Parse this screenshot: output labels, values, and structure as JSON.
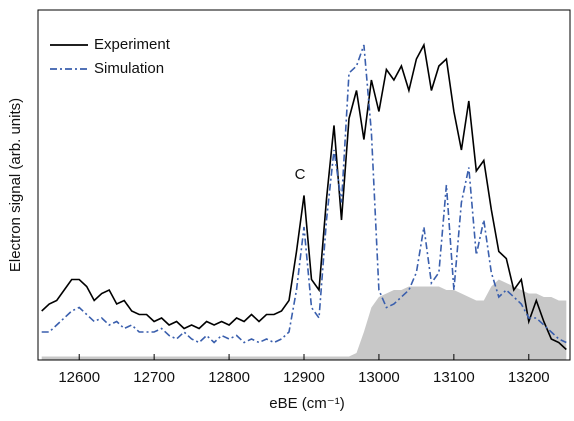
{
  "chart_data": {
    "type": "line",
    "xlabel": "eBE (cm⁻¹)",
    "ylabel": "Electron signal (arb. units)",
    "annotation": "C",
    "x": [
      12550,
      12560,
      12570,
      12580,
      12590,
      12600,
      12610,
      12620,
      12630,
      12640,
      12650,
      12660,
      12670,
      12680,
      12690,
      12700,
      12710,
      12720,
      12730,
      12740,
      12750,
      12760,
      12770,
      12780,
      12790,
      12800,
      12810,
      12820,
      12830,
      12840,
      12850,
      12860,
      12870,
      12880,
      12890,
      12900,
      12910,
      12920,
      12930,
      12940,
      12950,
      12960,
      12970,
      12980,
      12990,
      13000,
      13010,
      13020,
      13030,
      13040,
      13050,
      13060,
      13070,
      13080,
      13090,
      13100,
      13110,
      13120,
      13130,
      13140,
      13150,
      13160,
      13170,
      13180,
      13190,
      13200,
      13210,
      13220,
      13230,
      13240,
      13250
    ],
    "series": [
      {
        "name": "Experiment",
        "color": "#000000",
        "dash": "solid",
        "values": [
          0.14,
          0.16,
          0.17,
          0.2,
          0.23,
          0.23,
          0.21,
          0.17,
          0.19,
          0.2,
          0.16,
          0.17,
          0.14,
          0.13,
          0.13,
          0.11,
          0.12,
          0.1,
          0.11,
          0.09,
          0.1,
          0.09,
          0.11,
          0.1,
          0.11,
          0.1,
          0.12,
          0.11,
          0.13,
          0.11,
          0.13,
          0.13,
          0.14,
          0.17,
          0.31,
          0.47,
          0.23,
          0.2,
          0.46,
          0.67,
          0.4,
          0.69,
          0.77,
          0.63,
          0.8,
          0.71,
          0.83,
          0.8,
          0.84,
          0.77,
          0.86,
          0.9,
          0.77,
          0.84,
          0.86,
          0.71,
          0.6,
          0.74,
          0.54,
          0.57,
          0.43,
          0.31,
          0.29,
          0.2,
          0.23,
          0.11,
          0.17,
          0.11,
          0.06,
          0.05,
          0.03
        ]
      },
      {
        "name": "Simulation",
        "color": "#3a5fad",
        "dash": "dashdot",
        "values": [
          0.08,
          0.08,
          0.1,
          0.12,
          0.14,
          0.15,
          0.13,
          0.11,
          0.12,
          0.1,
          0.11,
          0.09,
          0.1,
          0.08,
          0.08,
          0.08,
          0.09,
          0.07,
          0.06,
          0.08,
          0.06,
          0.05,
          0.07,
          0.05,
          0.07,
          0.06,
          0.07,
          0.05,
          0.06,
          0.05,
          0.06,
          0.05,
          0.06,
          0.08,
          0.2,
          0.38,
          0.15,
          0.12,
          0.4,
          0.6,
          0.45,
          0.82,
          0.84,
          0.9,
          0.65,
          0.2,
          0.15,
          0.16,
          0.18,
          0.2,
          0.25,
          0.38,
          0.22,
          0.25,
          0.5,
          0.2,
          0.45,
          0.55,
          0.3,
          0.4,
          0.25,
          0.18,
          0.2,
          0.18,
          0.16,
          0.12,
          0.12,
          0.1,
          0.08,
          0.06,
          0.05
        ]
      },
      {
        "color": "#c8c8c8",
        "fill": true,
        "values": [
          0.01,
          0.01,
          0.01,
          0.01,
          0.01,
          0.01,
          0.01,
          0.01,
          0.01,
          0.01,
          0.01,
          0.01,
          0.01,
          0.01,
          0.01,
          0.01,
          0.01,
          0.01,
          0.01,
          0.01,
          0.01,
          0.01,
          0.01,
          0.01,
          0.01,
          0.01,
          0.01,
          0.01,
          0.01,
          0.01,
          0.01,
          0.01,
          0.01,
          0.01,
          0.01,
          0.01,
          0.01,
          0.01,
          0.01,
          0.01,
          0.01,
          0.01,
          0.02,
          0.08,
          0.15,
          0.18,
          0.19,
          0.2,
          0.2,
          0.21,
          0.21,
          0.21,
          0.21,
          0.21,
          0.2,
          0.2,
          0.19,
          0.18,
          0.17,
          0.17,
          0.21,
          0.23,
          0.22,
          0.21,
          0.2,
          0.19,
          0.19,
          0.18,
          0.18,
          0.17,
          0.17
        ]
      }
    ],
    "xlim": [
      12545,
      13255
    ],
    "ylim": [
      0,
      1
    ],
    "xticks": [
      12600,
      12700,
      12800,
      12900,
      13000,
      13100,
      13200
    ],
    "legend": "top-left"
  }
}
